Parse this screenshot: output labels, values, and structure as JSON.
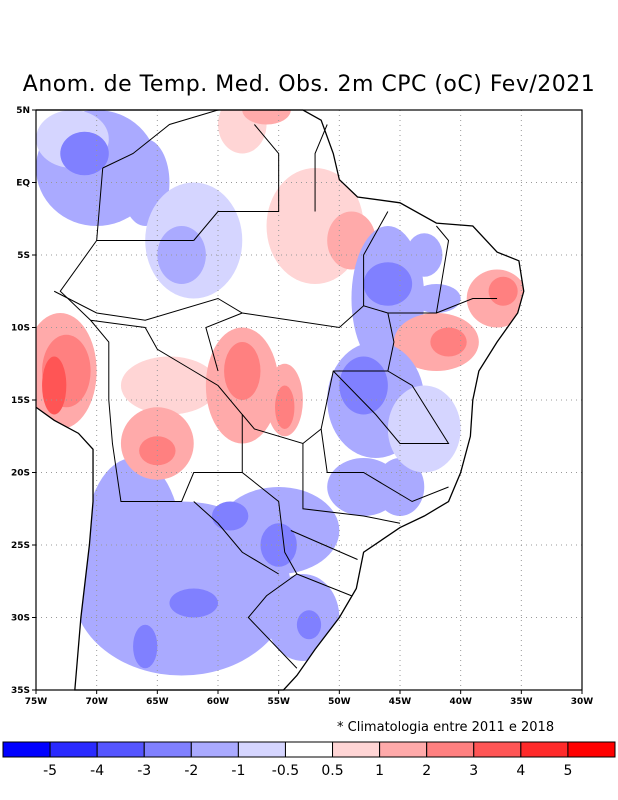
{
  "title": "Anom. de Temp. Med. Obs. 2m CPC (oC) Fev/2021",
  "note": "* Climatologia entre 2011 e 2018",
  "map": {
    "lon_range": [
      -75,
      -30
    ],
    "lat_range": [
      -35,
      5
    ],
    "lon_ticks": [
      "75W",
      "70W",
      "65W",
      "60W",
      "55W",
      "50W",
      "45W",
      "40W",
      "35W",
      "30W"
    ],
    "lat_ticks": [
      "5N",
      "EQ",
      "5S",
      "10S",
      "15S",
      "20S",
      "25S",
      "30S",
      "35S"
    ]
  },
  "colorbar": {
    "colors": [
      "#0000ff",
      "#2a2aff",
      "#5555ff",
      "#8080ff",
      "#aaaaff",
      "#d5d5ff",
      "#ffffff",
      "#ffd5d5",
      "#ffaaaa",
      "#ff8080",
      "#ff5555",
      "#ff2a2a",
      "#ff0000"
    ],
    "labels": [
      "-5",
      "-4",
      "-3",
      "-2",
      "-1",
      "-0.5",
      "0.5",
      "1",
      "2",
      "3",
      "4",
      "5"
    ]
  }
}
